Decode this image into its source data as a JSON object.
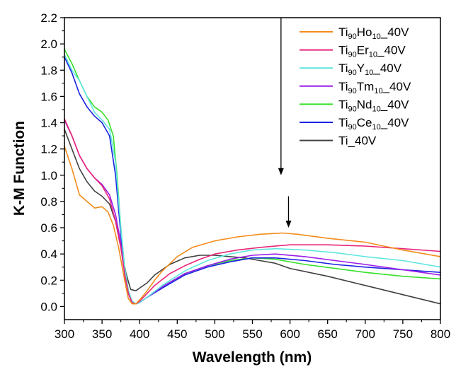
{
  "chart_data": {
    "type": "line",
    "xlabel": "Wavelength (nm)",
    "ylabel": "K-M Function",
    "xlim": [
      300,
      800
    ],
    "ylim": [
      -0.1,
      2.2
    ],
    "xticks": [
      "300",
      "350",
      "400",
      "450",
      "500",
      "550",
      "600",
      "650",
      "700",
      "750",
      "800"
    ],
    "yticks": [
      "0.0",
      "0.2",
      "0.4",
      "0.6",
      "0.8",
      "1.0",
      "1.2",
      "1.4",
      "1.6",
      "1.8",
      "2.0",
      "2.2"
    ],
    "grid": false,
    "legend_position": "top-right",
    "annotations": [
      {
        "type": "arrow",
        "direction": "down",
        "x": 588,
        "from_y": 2.2,
        "to_y": 1.0
      },
      {
        "type": "arrow",
        "direction": "down",
        "x": 598,
        "from_y": 0.84,
        "to_y": 0.6
      }
    ],
    "series": [
      {
        "legend": {
          "base1": "Ti",
          "sub1": "90",
          "base2": "Ho",
          "sub2": "10",
          "tail": "_40V"
        },
        "color": "#f28c1c",
        "x": [
          300,
          310,
          320,
          330,
          340,
          350,
          358,
          365,
          372,
          380,
          385,
          390,
          395,
          400,
          410,
          420,
          430,
          450,
          470,
          500,
          530,
          560,
          590,
          610,
          650,
          700,
          750,
          800
        ],
        "y": [
          1.22,
          1.05,
          0.85,
          0.8,
          0.75,
          0.76,
          0.72,
          0.62,
          0.45,
          0.2,
          0.06,
          0.02,
          0.02,
          0.05,
          0.12,
          0.2,
          0.27,
          0.38,
          0.45,
          0.5,
          0.53,
          0.55,
          0.56,
          0.55,
          0.52,
          0.49,
          0.43,
          0.38
        ]
      },
      {
        "legend": {
          "base1": "Ti",
          "sub1": "90",
          "base2": "Er",
          "sub2": "10",
          "tail": "_40V"
        },
        "color": "#e8257a",
        "x": [
          300,
          310,
          320,
          330,
          340,
          350,
          360,
          368,
          375,
          380,
          385,
          390,
          395,
          400,
          410,
          420,
          440,
          460,
          480,
          500,
          530,
          560,
          600,
          650,
          700,
          750,
          800
        ],
        "y": [
          1.43,
          1.3,
          1.15,
          1.05,
          0.98,
          0.92,
          0.82,
          0.65,
          0.45,
          0.25,
          0.1,
          0.03,
          0.02,
          0.04,
          0.1,
          0.16,
          0.25,
          0.31,
          0.36,
          0.4,
          0.43,
          0.45,
          0.47,
          0.47,
          0.46,
          0.44,
          0.42
        ]
      },
      {
        "legend": {
          "base1": "Ti",
          "sub1": "90",
          "base2": "Y",
          "sub2": "10",
          "tail": "_40V"
        },
        "color": "#5fe6e0",
        "x": [
          300,
          310,
          320,
          330,
          340,
          350,
          360,
          368,
          375,
          380,
          385,
          390,
          395,
          400,
          410,
          430,
          460,
          490,
          520,
          550,
          580,
          620,
          660,
          700,
          750,
          800
        ],
        "y": [
          1.92,
          1.8,
          1.72,
          1.6,
          1.48,
          1.42,
          1.35,
          1.1,
          0.6,
          0.3,
          0.12,
          0.04,
          0.02,
          0.03,
          0.07,
          0.16,
          0.27,
          0.35,
          0.4,
          0.43,
          0.44,
          0.43,
          0.41,
          0.38,
          0.35,
          0.3
        ]
      },
      {
        "legend": {
          "base1": "Ti",
          "sub1": "90",
          "base2": "Tm",
          "sub2": "10",
          "tail": "_40V"
        },
        "color": "#9a1be8",
        "x": [
          300,
          310,
          320,
          330,
          340,
          350,
          360,
          368,
          375,
          380,
          385,
          390,
          395,
          400,
          410,
          430,
          460,
          490,
          520,
          550,
          580,
          620,
          660,
          700,
          750,
          800
        ],
        "y": [
          1.42,
          1.3,
          1.15,
          1.05,
          0.98,
          0.93,
          0.85,
          0.7,
          0.48,
          0.25,
          0.1,
          0.03,
          0.02,
          0.03,
          0.07,
          0.15,
          0.25,
          0.31,
          0.36,
          0.39,
          0.4,
          0.38,
          0.35,
          0.32,
          0.28,
          0.24
        ]
      },
      {
        "legend": {
          "base1": "Ti",
          "sub1": "90",
          "base2": "Nd",
          "sub2": "10",
          "tail": "_40V"
        },
        "color": "#36e02a",
        "x": [
          300,
          310,
          320,
          330,
          340,
          350,
          358,
          365,
          370,
          375,
          380,
          385,
          390,
          395,
          400,
          410,
          430,
          460,
          490,
          520,
          550,
          580,
          620,
          660,
          700,
          750,
          800
        ],
        "y": [
          1.96,
          1.85,
          1.72,
          1.6,
          1.52,
          1.48,
          1.42,
          1.3,
          1.0,
          0.6,
          0.3,
          0.12,
          0.04,
          0.02,
          0.03,
          0.07,
          0.15,
          0.25,
          0.31,
          0.35,
          0.37,
          0.36,
          0.32,
          0.29,
          0.26,
          0.23,
          0.21
        ]
      },
      {
        "legend": {
          "base1": "Ti",
          "sub1": "90",
          "base2": "Ce",
          "sub2": "10",
          "tail": "_40V"
        },
        "color": "#1a22e0",
        "x": [
          300,
          310,
          320,
          330,
          340,
          350,
          360,
          368,
          375,
          380,
          385,
          390,
          395,
          400,
          410,
          430,
          460,
          490,
          520,
          550,
          580,
          620,
          660,
          700,
          750,
          800
        ],
        "y": [
          1.9,
          1.78,
          1.62,
          1.52,
          1.45,
          1.4,
          1.3,
          1.0,
          0.55,
          0.25,
          0.1,
          0.03,
          0.02,
          0.03,
          0.07,
          0.14,
          0.24,
          0.3,
          0.34,
          0.37,
          0.37,
          0.35,
          0.32,
          0.3,
          0.28,
          0.26
        ]
      },
      {
        "legend": {
          "base1": "Ti_40V"
        },
        "color": "#404040",
        "x": [
          300,
          310,
          320,
          330,
          340,
          350,
          360,
          368,
          375,
          382,
          388,
          395,
          400,
          410,
          420,
          440,
          460,
          480,
          500,
          520,
          540,
          560,
          580,
          600,
          650,
          700,
          750,
          800
        ],
        "y": [
          1.35,
          1.2,
          1.05,
          0.95,
          0.88,
          0.84,
          0.78,
          0.65,
          0.45,
          0.25,
          0.13,
          0.12,
          0.14,
          0.18,
          0.24,
          0.32,
          0.37,
          0.39,
          0.39,
          0.38,
          0.37,
          0.35,
          0.33,
          0.29,
          0.23,
          0.16,
          0.09,
          0.02
        ]
      }
    ]
  }
}
